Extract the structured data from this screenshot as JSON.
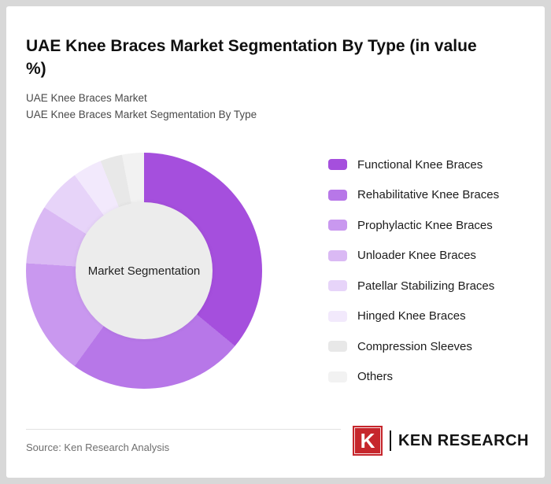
{
  "page": {
    "title": "UAE Knee Braces Market Segmentation By Type (in value %)",
    "subtitle_line1": "UAE Knee Braces Market",
    "subtitle_line2": "UAE Knee Braces Market Segmentation By Type",
    "source": "Source: Ken Research Analysis",
    "logo": {
      "k_letter": "K",
      "brand_text": "KEN RESEARCH",
      "brand_red": "#c6262c"
    }
  },
  "chart_data": {
    "type": "pie",
    "donut": true,
    "title": "UAE Knee Braces Market Segmentation By Type (in value %)",
    "center_label": "Market Segmentation",
    "legend_position": "right",
    "start_angle_deg": 0,
    "categories": [
      "Functional Knee Braces",
      "Rehabilitative Knee Braces",
      "Prophylactic Knee Braces",
      "Unloader Knee Braces",
      "Patellar Stabilizing Braces",
      "Hinged Knee Braces",
      "Compression Sleeves",
      "Others"
    ],
    "values": [
      36,
      24,
      16,
      8,
      6,
      4,
      3,
      3
    ],
    "colors": [
      "#a54fdd",
      "#b777e8",
      "#c998ef",
      "#dab9f4",
      "#e7d4f9",
      "#f2e9fc",
      "#e8e8e8",
      "#f2f2f2"
    ],
    "hole_color": "#ececec"
  }
}
